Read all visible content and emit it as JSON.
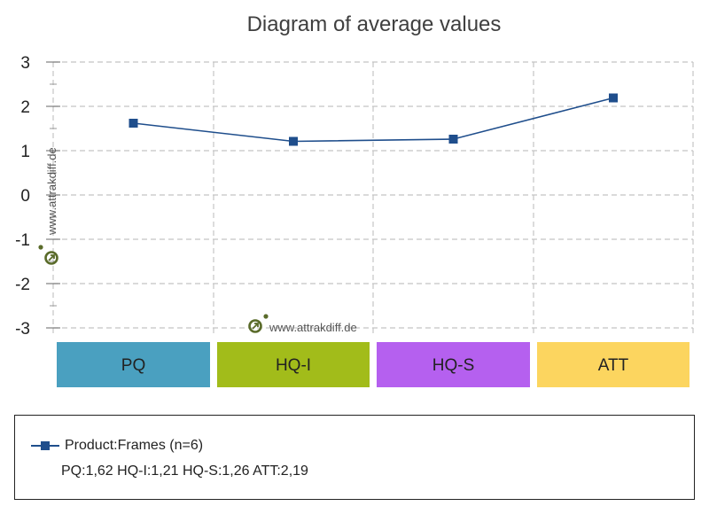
{
  "chart_data": {
    "type": "line",
    "title": "Diagram of average values",
    "categories": [
      "PQ",
      "HQ-I",
      "HQ-S",
      "ATT"
    ],
    "category_colors": [
      "#4aa0c0",
      "#a2bc1a",
      "#b560ef",
      "#fcd55f"
    ],
    "series": [
      {
        "name": "Product:Frames (n=6)",
        "values": [
          1.62,
          1.21,
          1.26,
          2.19
        ],
        "color": "#1f4e8c"
      }
    ],
    "yticks": [
      "3",
      "2",
      "1",
      "0",
      "-1",
      "-2",
      "-3"
    ],
    "ylim": [
      -3,
      3
    ],
    "grid": true,
    "legend_position": "bottom"
  },
  "legend": {
    "series_label": "Product:Frames (n=6)",
    "values_text": "PQ:1,62 HQ-I:1,21 HQ-S:1,26 ATT:2,19"
  },
  "watermark": {
    "text": "www.attrakdiff.de",
    "color": "#5a6b2a"
  }
}
